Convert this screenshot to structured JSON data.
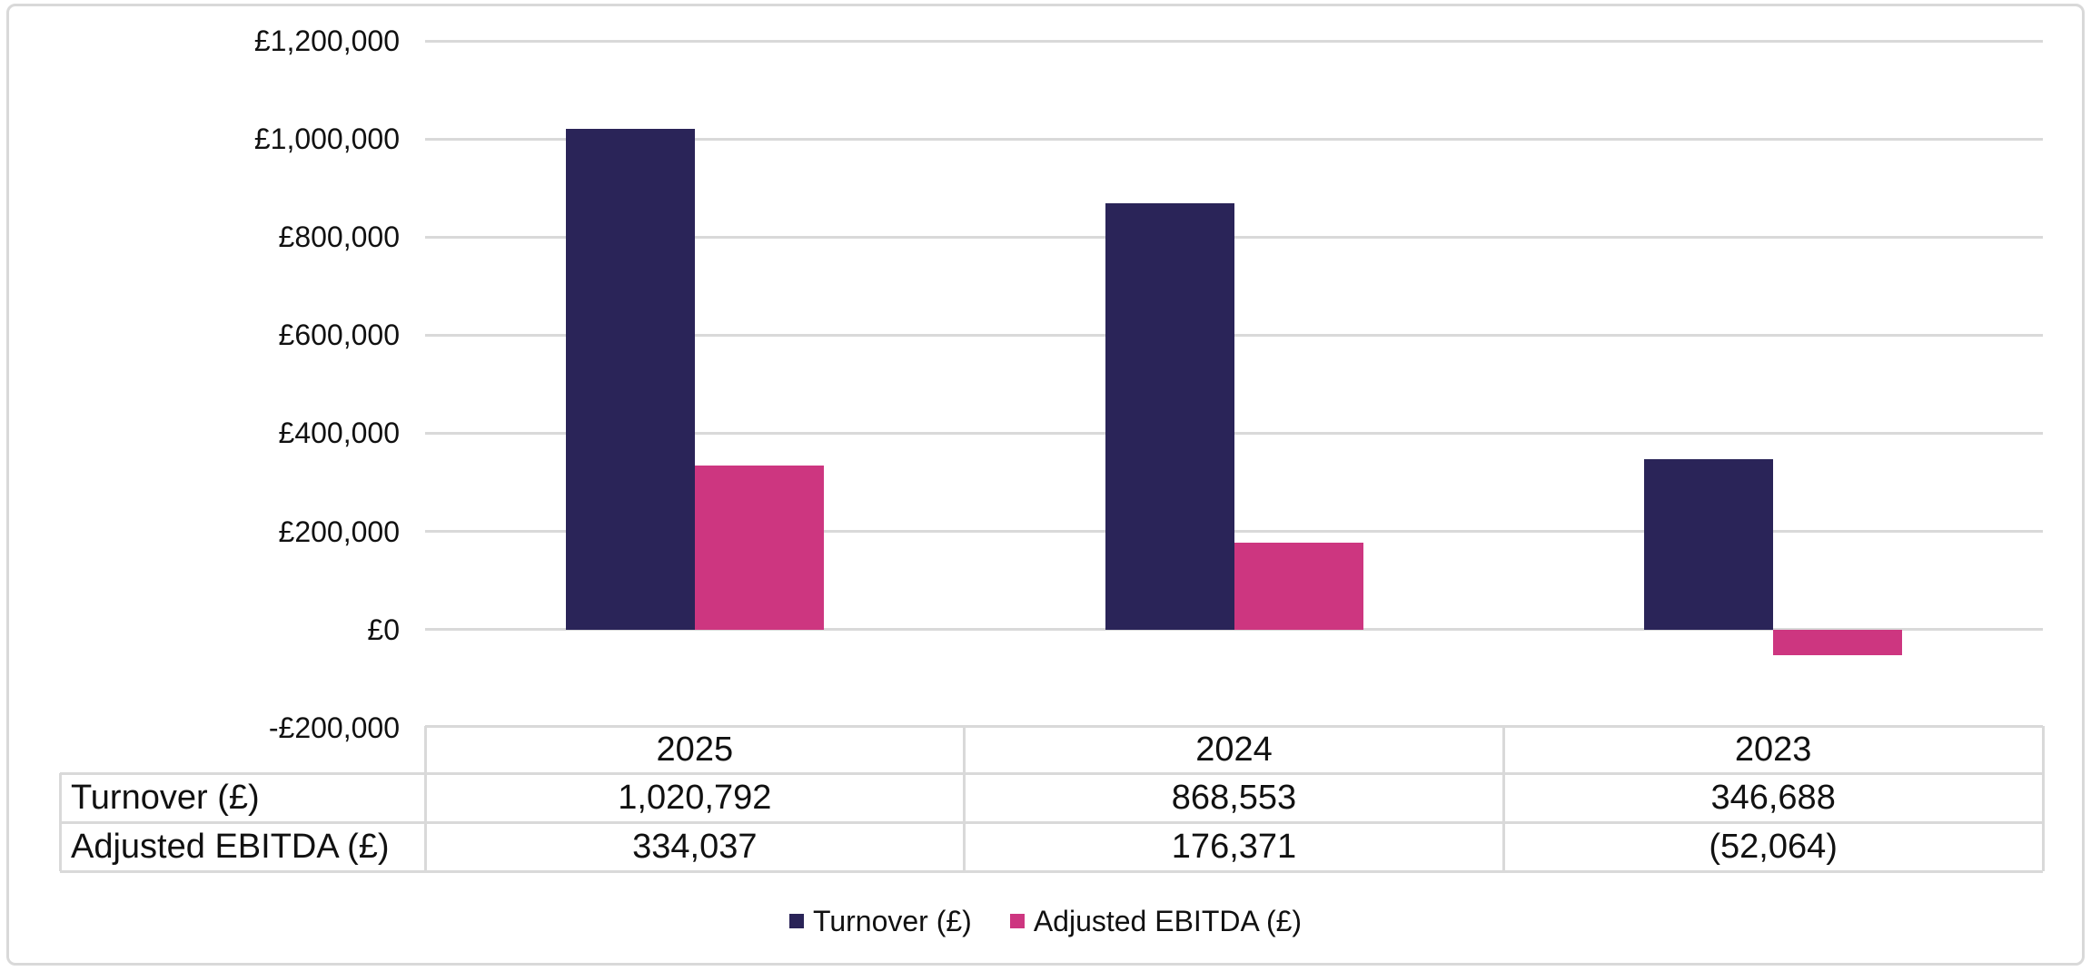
{
  "colors": {
    "turnover": "#2A2458",
    "ebitda": "#CD3680",
    "gridline": "#D9D9D9",
    "table_border": "#D9D9D9",
    "frame_border": "#D9D9D9",
    "text": "#111111",
    "background": "#FFFFFF"
  },
  "chart_data": {
    "type": "bar",
    "title": "",
    "xlabel": "",
    "ylabel": "",
    "categories": [
      "2025",
      "2024",
      "2023"
    ],
    "series": [
      {
        "name": "Turnover (£)",
        "color_key": "turnover",
        "values": [
          1020792,
          868553,
          346688
        ]
      },
      {
        "name": "Adjusted EBITDA (£)",
        "color_key": "ebitda",
        "values": [
          334037,
          176371,
          -52064
        ]
      }
    ],
    "ylim": [
      -200000,
      1200000
    ],
    "ytick_step": 200000,
    "yticks": [
      {
        "value": 1200000,
        "label": "£1,200,000"
      },
      {
        "value": 1000000,
        "label": "£1,000,000"
      },
      {
        "value": 800000,
        "label": "£800,000"
      },
      {
        "value": 600000,
        "label": "£600,000"
      },
      {
        "value": 400000,
        "label": "£400,000"
      },
      {
        "value": 200000,
        "label": "£200,000"
      },
      {
        "value": 0,
        "label": "£0"
      },
      {
        "value": -200000,
        "label": "-£200,000"
      }
    ],
    "grid": true,
    "legend_position": "bottom"
  },
  "data_table": {
    "header_row": [
      "2025",
      "2024",
      "2023"
    ],
    "rows": [
      {
        "label": "Turnover (£)",
        "values": [
          "1,020,792",
          "868,553",
          "346,688"
        ]
      },
      {
        "label": "Adjusted EBITDA (£)",
        "values": [
          "334,037",
          "176,371",
          "(52,064)"
        ]
      }
    ]
  },
  "legend": {
    "items": [
      {
        "label": "Turnover (£)",
        "color_key": "turnover"
      },
      {
        "label": "Adjusted EBITDA (£)",
        "color_key": "ebitda"
      }
    ]
  }
}
